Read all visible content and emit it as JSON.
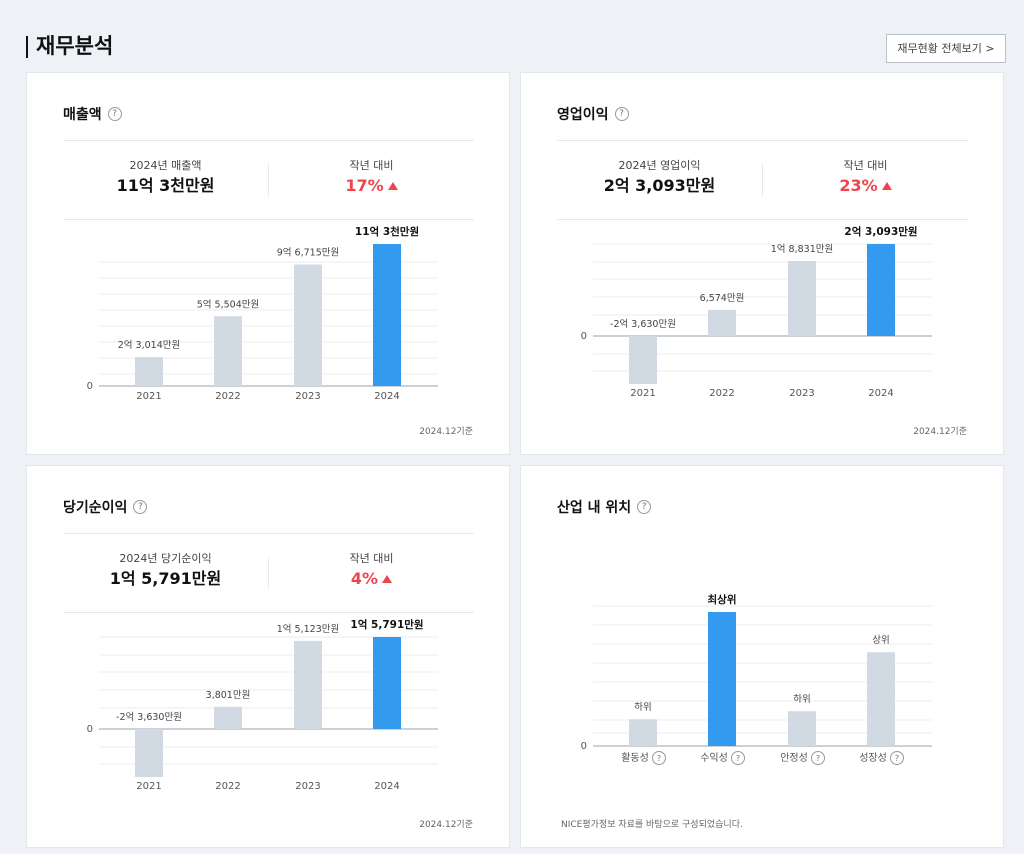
{
  "section": {
    "title": "재무분석",
    "view_all": "재무현황 전체보기 >"
  },
  "help_mark": "?",
  "colors": {
    "bar_normal": "#d1dae3",
    "bar_highlight": "#339af0",
    "up": "#f0444d",
    "axis": "#9aa3ad",
    "grid": "#eceef1"
  },
  "cards": {
    "revenue": {
      "title": "매출액",
      "summary": {
        "label": "2024년 매출액",
        "value": "11억 3천만원",
        "yoy_label": "작년 대비",
        "yoy_value": "17%"
      },
      "footnote": "2024.12기준"
    },
    "operating": {
      "title": "영업이익",
      "summary": {
        "label": "2024년 영업이익",
        "value": "2억 3,093만원",
        "yoy_label": "작년 대비",
        "yoy_value": "23%"
      },
      "footnote": "2024.12기준"
    },
    "net": {
      "title": "당기순이익",
      "summary": {
        "label": "2024년 당기순이익",
        "value": "1억 5,791만원",
        "yoy_label": "작년 대비",
        "yoy_value": "4%"
      },
      "footnote": "2024.12기준"
    },
    "industry": {
      "title": "산업 내 위치",
      "footnote": "NICE평가정보 자료를 바탕으로 구성되었습니다."
    }
  },
  "chart_data": [
    {
      "type": "bar",
      "categories": [
        "2021",
        "2022",
        "2023",
        "2024"
      ],
      "values": [
        23014,
        55504,
        96715,
        113000
      ],
      "value_labels": [
        "2억 3,014만원",
        "5억 5,504만원",
        "9억 6,715만원",
        "11억 3천만원"
      ],
      "highlight_index": 3,
      "zero_label": "0",
      "ylim": [
        0,
        113000
      ]
    },
    {
      "type": "bar",
      "categories": [
        "2021",
        "2022",
        "2023",
        "2024"
      ],
      "values": [
        -23630,
        6574,
        18831,
        23093
      ],
      "value_labels": [
        "-2억 3,630만원",
        "6,574만원",
        "1억 8,831만원",
        "2억 3,093만원"
      ],
      "highlight_index": 3,
      "zero_label": "0",
      "ylim": [
        -23630,
        23093
      ]
    },
    {
      "type": "bar",
      "categories": [
        "2021",
        "2022",
        "2023",
        "2024"
      ],
      "values": [
        -23630,
        3801,
        15123,
        15791
      ],
      "value_labels": [
        "-2억 3,630만원",
        "3,801만원",
        "1억 5,123만원",
        "1억 5,791만원"
      ],
      "highlight_index": 3,
      "zero_label": "0",
      "ylim": [
        -23630,
        15791
      ]
    },
    {
      "type": "bar",
      "categories": [
        "활동성",
        "수익성",
        "안정성",
        "성장성"
      ],
      "values": [
        1,
        5,
        1.3,
        3.5
      ],
      "value_labels": [
        "하위",
        "최상위",
        "하위",
        "상위"
      ],
      "highlight_index": 1,
      "zero_label": "0",
      "ylim": [
        0,
        5
      ]
    }
  ]
}
